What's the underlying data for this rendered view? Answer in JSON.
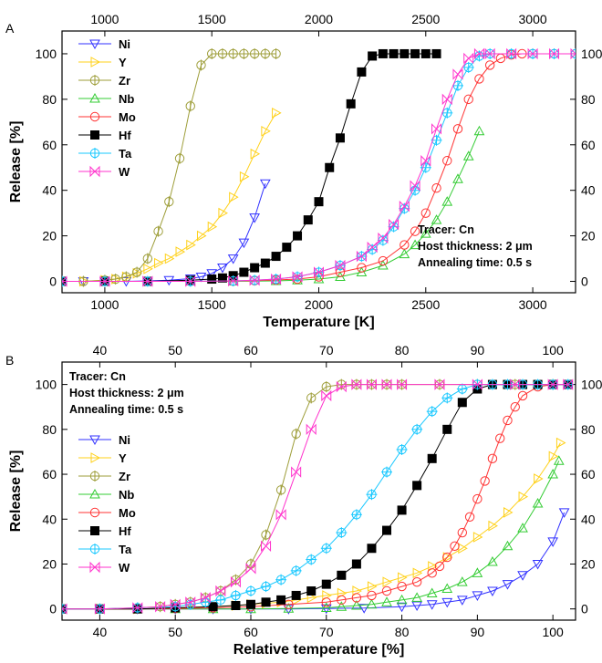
{
  "chart_data": [
    {
      "panel": "A",
      "type": "line",
      "xlabel": "Temperature [K]",
      "ylabel": "Release [%]",
      "xlim": [
        800,
        3200
      ],
      "ylim": [
        -5,
        110
      ],
      "xticks": [
        1000,
        1500,
        2000,
        2500,
        3000
      ],
      "yticks": [
        0,
        20,
        40,
        60,
        80,
        100
      ],
      "top_axis_mirrors_bottom": true,
      "right_axis_mirrors_left": true,
      "grid": false,
      "legend_position": "top-left",
      "annotations": [
        "Tracer: Cn",
        "Host thickness: 2 μm",
        "Annealing time: 0.5 s"
      ],
      "annotation_position": "bottom-right",
      "series": [
        {
          "name": "Ni",
          "color": "#3232ff",
          "marker": "triangle-down",
          "x": [
            800,
            900,
            1000,
            1100,
            1200,
            1300,
            1400,
            1450,
            1500,
            1550,
            1600,
            1650,
            1700,
            1750
          ],
          "y": [
            0,
            0,
            0,
            0,
            0.2,
            0.5,
            1.2,
            2,
            3.5,
            6,
            10,
            17,
            28,
            43
          ]
        },
        {
          "name": "Y",
          "color": "#ffd11a",
          "marker": "triangle-right",
          "x": [
            800,
            900,
            1000,
            1050,
            1100,
            1150,
            1200,
            1250,
            1300,
            1350,
            1400,
            1450,
            1500,
            1550,
            1600,
            1650,
            1700,
            1750,
            1800
          ],
          "y": [
            0,
            0,
            0.5,
            1,
            2,
            3.5,
            5.5,
            8,
            10,
            13,
            16,
            20,
            24,
            30,
            37,
            46,
            56,
            66,
            74
          ]
        },
        {
          "name": "Zr",
          "color": "#9e9e3a",
          "marker": "circle-bar",
          "x": [
            800,
            900,
            1000,
            1050,
            1100,
            1150,
            1200,
            1250,
            1300,
            1350,
            1400,
            1450,
            1500,
            1550,
            1600,
            1650,
            1700,
            1750,
            1800
          ],
          "y": [
            0,
            0,
            0.5,
            1,
            2,
            4,
            10,
            22,
            35,
            54,
            77,
            95,
            100,
            100,
            100,
            100,
            100,
            100,
            100
          ]
        },
        {
          "name": "Nb",
          "color": "#33cc33",
          "marker": "triangle-up",
          "x": [
            800,
            1000,
            1200,
            1400,
            1600,
            1800,
            1900,
            2000,
            2100,
            2200,
            2300,
            2400,
            2450,
            2500,
            2550,
            2600,
            2650,
            2700,
            2750
          ],
          "y": [
            0,
            0,
            0,
            0,
            0,
            0.2,
            0.5,
            1,
            2,
            4,
            7,
            12,
            16,
            21,
            27,
            35,
            45,
            55,
            66
          ]
        },
        {
          "name": "Mo",
          "color": "#ff3333",
          "marker": "circle",
          "x": [
            800,
            1000,
            1200,
            1400,
            1600,
            1700,
            1800,
            1900,
            2000,
            2100,
            2200,
            2300,
            2400,
            2450,
            2500,
            2550,
            2600,
            2650,
            2700,
            2750,
            2800,
            2850,
            2900,
            2950,
            3000,
            3100,
            3200
          ],
          "y": [
            0,
            0,
            0,
            0,
            0.1,
            0.3,
            0.6,
            1,
            2,
            4,
            6,
            9,
            16,
            22,
            30,
            41,
            53,
            67,
            80,
            89,
            95,
            98,
            99.5,
            100,
            100,
            100,
            100
          ]
        },
        {
          "name": "Hf",
          "color": "#000000",
          "marker": "square",
          "x": [
            800,
            1000,
            1200,
            1400,
            1500,
            1550,
            1600,
            1650,
            1700,
            1750,
            1800,
            1850,
            1900,
            1950,
            2000,
            2050,
            2100,
            2150,
            2200,
            2250,
            2300,
            2350,
            2400,
            2450,
            2500,
            2550
          ],
          "y": [
            0,
            0,
            0,
            0.5,
            1,
            1.5,
            2.5,
            4,
            6,
            8,
            11,
            15,
            20,
            27,
            35,
            50,
            63,
            78,
            92,
            99,
            100,
            100,
            100,
            100,
            100,
            100
          ]
        },
        {
          "name": "Ta",
          "color": "#19c8ff",
          "marker": "circle-plus",
          "x": [
            800,
            1000,
            1200,
            1400,
            1600,
            1700,
            1800,
            1900,
            2000,
            2100,
            2200,
            2250,
            2300,
            2350,
            2400,
            2450,
            2500,
            2550,
            2600,
            2650,
            2700,
            2750,
            2800,
            2900,
            3000,
            3100,
            3200
          ],
          "y": [
            0,
            0,
            0,
            0,
            0.2,
            0.5,
            1,
            2,
            4,
            7,
            11,
            14,
            18,
            24,
            32,
            40,
            50,
            62,
            74,
            86,
            94,
            99,
            100,
            100,
            100,
            100,
            100
          ]
        },
        {
          "name": "W",
          "color": "#ff33cc",
          "marker": "x-triangle",
          "x": [
            800,
            1000,
            1200,
            1400,
            1600,
            1700,
            1800,
            1900,
            2000,
            2100,
            2200,
            2250,
            2300,
            2350,
            2400,
            2450,
            2500,
            2550,
            2600,
            2650,
            2700,
            2750,
            2800,
            2900,
            3000,
            3100,
            3200
          ],
          "y": [
            0,
            0,
            0,
            0,
            0.2,
            0.5,
            1,
            2,
            4,
            7,
            11,
            15,
            19,
            25,
            33,
            42,
            53,
            67,
            80,
            91,
            98,
            100,
            100,
            100,
            100,
            100,
            100
          ]
        }
      ]
    },
    {
      "panel": "B",
      "type": "line",
      "xlabel": "Relative temperature [%]",
      "ylabel": "Release [%]",
      "xlim": [
        35,
        103
      ],
      "ylim": [
        -5,
        110
      ],
      "xticks": [
        40,
        50,
        60,
        70,
        80,
        90,
        100
      ],
      "yticks": [
        0,
        20,
        40,
        60,
        80,
        100
      ],
      "top_axis_mirrors_bottom": true,
      "right_axis_mirrors_left": true,
      "grid": false,
      "legend_position": "left",
      "annotations": [
        "Tracer: Cn",
        "Host thickness: 2 μm",
        "Annealing time: 0.5 s"
      ],
      "annotation_position": "top-left",
      "series": [
        {
          "name": "Ni",
          "color": "#3232ff",
          "marker": "triangle-down",
          "x": [
            35,
            40,
            45,
            50,
            55,
            60,
            65,
            70,
            75,
            80,
            82,
            84,
            86,
            88,
            90,
            92,
            94,
            96,
            98,
            100,
            101.5
          ],
          "y": [
            0,
            0,
            0,
            0,
            0,
            0,
            0,
            0.2,
            0.4,
            1,
            1.5,
            2,
            3,
            4,
            6,
            8,
            11,
            15,
            20,
            30,
            43
          ]
        },
        {
          "name": "Y",
          "color": "#ffd11a",
          "marker": "triangle-right",
          "x": [
            35,
            40,
            45,
            50,
            55,
            58,
            60,
            62,
            64,
            66,
            68,
            70,
            72,
            74,
            76,
            78,
            80,
            82,
            84,
            86,
            88,
            90,
            92,
            94,
            96,
            98,
            100,
            101
          ],
          "y": [
            0,
            0,
            0,
            0.5,
            1,
            1.5,
            2,
            2.5,
            3,
            4,
            5,
            6,
            7,
            8,
            10,
            12,
            14,
            16,
            19,
            23,
            27,
            32,
            37,
            43,
            50,
            58,
            68,
            74
          ]
        },
        {
          "name": "Zr",
          "color": "#9e9e3a",
          "marker": "circle-bar",
          "x": [
            35,
            40,
            45,
            48,
            50,
            52,
            54,
            56,
            58,
            60,
            62,
            64,
            66,
            68,
            70,
            72,
            74,
            76,
            78,
            80,
            85,
            90,
            95,
            100
          ],
          "y": [
            0,
            0,
            0.5,
            1,
            2,
            3,
            5,
            8,
            13,
            20,
            33,
            53,
            78,
            94,
            99,
            100,
            100,
            100,
            100,
            100,
            100,
            100,
            100,
            100
          ]
        },
        {
          "name": "Nb",
          "color": "#33cc33",
          "marker": "triangle-up",
          "x": [
            35,
            40,
            45,
            50,
            55,
            60,
            65,
            70,
            72,
            74,
            76,
            78,
            80,
            82,
            84,
            86,
            88,
            90,
            92,
            94,
            96,
            98,
            100,
            100.8
          ],
          "y": [
            0,
            0,
            0,
            0,
            0,
            0,
            0.2,
            0.5,
            1,
            1.5,
            2,
            3,
            4,
            5,
            7,
            9,
            12,
            16,
            21,
            28,
            36,
            47,
            60,
            66
          ]
        },
        {
          "name": "Mo",
          "color": "#ff3333",
          "marker": "circle",
          "x": [
            35,
            40,
            45,
            50,
            55,
            60,
            65,
            70,
            72,
            74,
            76,
            78,
            80,
            82,
            84,
            85,
            86,
            87,
            88,
            89,
            90,
            91,
            92,
            93,
            94,
            95,
            96,
            98,
            100,
            102
          ],
          "y": [
            0,
            0,
            0,
            0.2,
            0.5,
            1,
            2,
            3,
            4,
            5,
            6,
            8,
            10,
            12,
            16,
            19,
            23,
            28,
            34,
            41,
            49,
            57,
            67,
            76,
            84,
            90,
            95,
            99,
            100,
            100
          ]
        },
        {
          "name": "Hf",
          "color": "#000000",
          "marker": "square",
          "x": [
            35,
            40,
            45,
            50,
            55,
            58,
            60,
            62,
            64,
            66,
            68,
            70,
            72,
            74,
            76,
            78,
            80,
            82,
            84,
            86,
            88,
            90,
            92,
            94,
            96,
            98,
            100,
            102
          ],
          "y": [
            0,
            0,
            0,
            0.5,
            1,
            1.5,
            2,
            3,
            4,
            6,
            8,
            11,
            15,
            20,
            27,
            35,
            44,
            55,
            67,
            80,
            92,
            98,
            100,
            100,
            100,
            100,
            100,
            100
          ]
        },
        {
          "name": "Ta",
          "color": "#19c8ff",
          "marker": "circle-plus",
          "x": [
            35,
            40,
            45,
            50,
            52,
            54,
            56,
            58,
            60,
            62,
            64,
            66,
            68,
            70,
            72,
            74,
            76,
            78,
            80,
            82,
            84,
            86,
            88,
            90,
            92,
            94,
            96,
            98,
            100,
            102
          ],
          "y": [
            0,
            0,
            0.5,
            1,
            2,
            3,
            4,
            6,
            8,
            10,
            13,
            17,
            22,
            27,
            34,
            42,
            51,
            61,
            71,
            80,
            88,
            94,
            98,
            100,
            100,
            100,
            100,
            100,
            100,
            100
          ]
        },
        {
          "name": "W",
          "color": "#ff33cc",
          "marker": "x-triangle",
          "x": [
            35,
            40,
            45,
            48,
            50,
            52,
            54,
            56,
            58,
            60,
            62,
            64,
            66,
            68,
            70,
            72,
            74,
            76,
            78,
            80,
            85,
            90,
            95,
            100,
            102
          ],
          "y": [
            0,
            0,
            0.5,
            1,
            2,
            3,
            5,
            8,
            12,
            18,
            28,
            42,
            61,
            80,
            95,
            99,
            100,
            100,
            100,
            100,
            100,
            100,
            100,
            100,
            100
          ]
        }
      ]
    }
  ]
}
